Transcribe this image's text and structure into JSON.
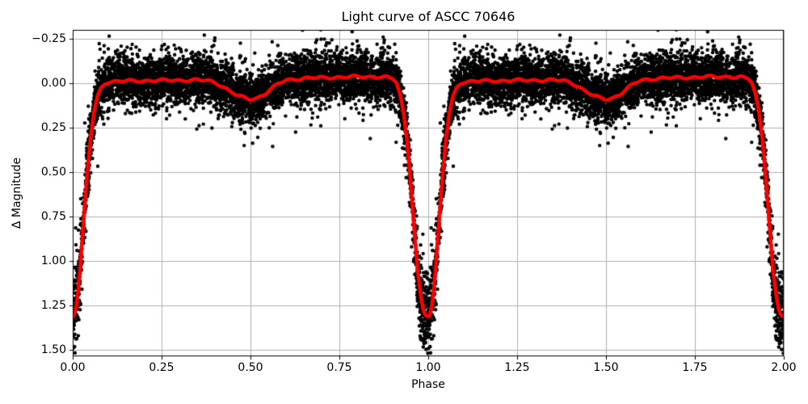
{
  "chart_data": {
    "type": "scatter",
    "title": "Light curve of ASCC 70646",
    "xlabel": "Phase",
    "ylabel": "Δ Magnitude",
    "grid": true,
    "y_axis_inverted": true,
    "xlim": [
      0,
      2
    ],
    "ylim": [
      -0.3,
      1.535
    ],
    "x_ticks": [
      {
        "value": 0.0,
        "label": "0.00"
      },
      {
        "value": 0.25,
        "label": "0.25"
      },
      {
        "value": 0.5,
        "label": "0.50"
      },
      {
        "value": 0.75,
        "label": "0.75"
      },
      {
        "value": 1.0,
        "label": "1.00"
      },
      {
        "value": 1.25,
        "label": "1.25"
      },
      {
        "value": 1.5,
        "label": "1.50"
      },
      {
        "value": 1.75,
        "label": "1.75"
      },
      {
        "value": 2.0,
        "label": "2.00"
      }
    ],
    "y_ticks": [
      {
        "value": -0.25,
        "label": "−0.25"
      },
      {
        "value": 0.0,
        "label": "0.00"
      },
      {
        "value": 0.25,
        "label": "0.25"
      },
      {
        "value": 0.5,
        "label": "0.50"
      },
      {
        "value": 0.75,
        "label": "0.75"
      },
      {
        "value": 1.0,
        "label": "1.00"
      },
      {
        "value": 1.25,
        "label": "1.25"
      },
      {
        "value": 1.5,
        "label": "1.50"
      }
    ],
    "colors": {
      "points": "#000000",
      "smoothed_curve": "#ff0000",
      "grid": "#b0b0b0",
      "spine": "#000000",
      "background": "#ffffff"
    },
    "series": [
      {
        "name": "folded-photometry-points",
        "type": "scatter",
        "color": "#000000",
        "duplicated_over_second_cycle": true,
        "generator": {
          "seed": 42,
          "n_points": 6000,
          "marker_radius": 2.2,
          "sigma_core": 0.065,
          "sigma_tail": 0.115,
          "tail_fraction": 0.15,
          "faint_noise_scale": 0.55
        }
      },
      {
        "name": "smoothed-mean-curve",
        "type": "line",
        "color": "#ff0000",
        "line_width": 4.5,
        "primary_eclipse_phase": 1.0,
        "primary_eclipse_depth": 1.31,
        "secondary_eclipse_phase": 0.5,
        "secondary_eclipse_depth": 0.09,
        "phase": [
          0.0,
          0.004,
          0.01,
          0.015,
          0.02,
          0.03,
          0.04,
          0.05,
          0.06,
          0.07,
          0.08,
          0.09,
          0.1,
          0.15,
          0.2,
          0.25,
          0.3,
          0.35,
          0.38,
          0.4,
          0.42,
          0.44,
          0.46,
          0.48,
          0.5,
          0.52,
          0.54,
          0.56,
          0.58,
          0.6,
          0.65,
          0.7,
          0.75,
          0.8,
          0.85,
          0.88,
          0.9,
          0.91,
          0.92,
          0.93,
          0.94,
          0.95,
          0.96,
          0.97,
          0.98,
          0.985,
          0.99,
          0.996,
          1.0
        ],
        "mag": [
          1.31,
          1.3,
          1.25,
          1.17,
          1.06,
          0.8,
          0.53,
          0.31,
          0.16,
          0.075,
          0.025,
          0.0,
          -0.008,
          -0.012,
          -0.014,
          -0.016,
          -0.017,
          -0.018,
          -0.014,
          -0.005,
          0.015,
          0.042,
          0.066,
          0.082,
          0.09,
          0.082,
          0.06,
          0.03,
          0.002,
          -0.018,
          -0.028,
          -0.031,
          -0.034,
          -0.036,
          -0.037,
          -0.034,
          -0.025,
          -0.005,
          0.06,
          0.16,
          0.31,
          0.53,
          0.8,
          1.06,
          1.21,
          1.265,
          1.295,
          1.308,
          1.31
        ],
        "wiggle": {
          "amp1": 0.005,
          "freq1": 140,
          "phase1": 0.7,
          "amp2": 0.0035,
          "freq2": 59,
          "phase2": 2.1
        }
      }
    ]
  }
}
